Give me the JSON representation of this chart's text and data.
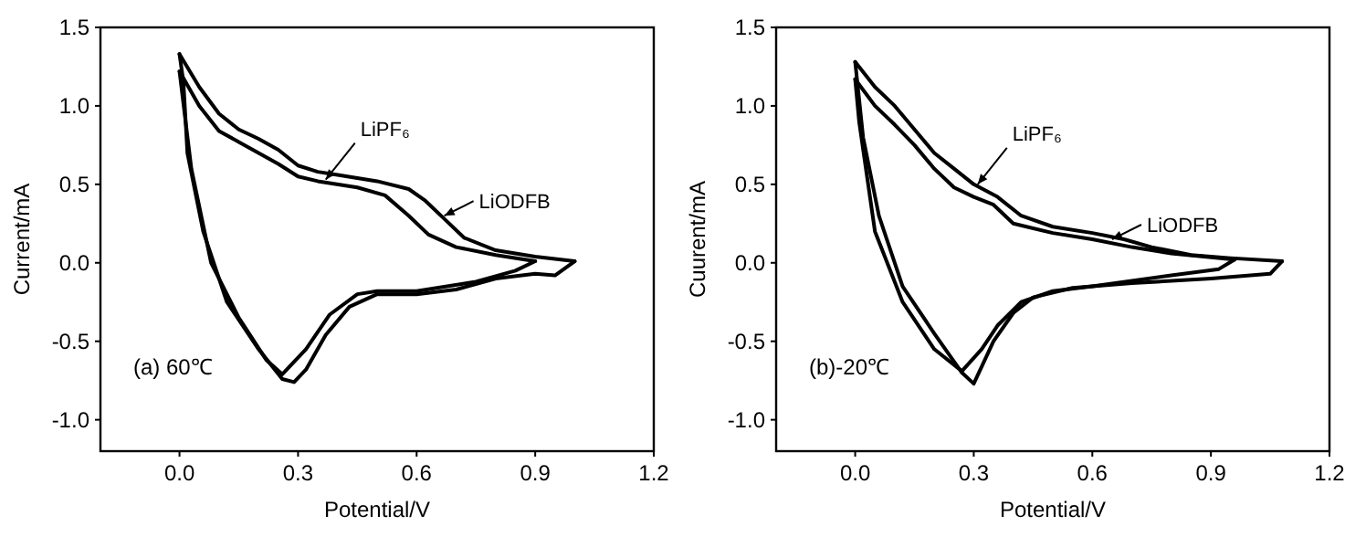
{
  "chart_data": [
    {
      "type": "line",
      "xlabel": "Potential/V",
      "ylabel": "Current/mA",
      "xlim": [
        -0.2,
        1.2
      ],
      "ylim": [
        -1.2,
        1.5
      ],
      "xticks": [
        {
          "value": 0,
          "label": "0.0"
        },
        0.3,
        0.6,
        0.9,
        1.2
      ],
      "yticks": [
        {
          "value": -1,
          "label": "-1.0"
        },
        -0.5,
        {
          "value": 0,
          "label": "0.0"
        },
        0.5,
        {
          "value": 1,
          "label": "1.0"
        },
        1.5
      ],
      "marker": "none",
      "line_style": "solid",
      "annotations": [
        "(a) 60℃",
        {
          "text": "LiPF₆",
          "x": 0.37,
          "y": 0.53
        },
        {
          "text": "LiODFB",
          "x": 0.67,
          "y": 0.3
        }
      ],
      "series": [
        {
          "color": "#000000",
          "x": [
            0.0,
            0.05,
            0.1,
            0.15,
            0.2,
            0.25,
            0.3,
            0.35,
            0.45,
            0.52,
            0.58,
            0.63,
            0.7,
            0.8,
            0.9
          ],
          "values": [
            1.22,
            1.0,
            0.84,
            0.77,
            0.7,
            0.63,
            0.55,
            0.52,
            0.48,
            0.43,
            0.3,
            0.18,
            0.1,
            0.05,
            0.01
          ]
        },
        {
          "color": "#000000",
          "x": [
            0.9,
            0.85,
            0.75,
            0.6,
            0.5,
            0.45,
            0.38,
            0.32,
            0.26,
            0.22,
            0.15,
            0.08,
            0.03,
            0.0
          ],
          "values": [
            0.01,
            -0.05,
            -0.12,
            -0.18,
            -0.18,
            -0.2,
            -0.33,
            -0.55,
            -0.71,
            -0.62,
            -0.35,
            0.0,
            0.6,
            1.22
          ]
        },
        {
          "color": "#000000",
          "x": [
            0.0,
            0.05,
            0.1,
            0.15,
            0.2,
            0.25,
            0.3,
            0.35,
            0.4,
            0.5,
            0.58,
            0.62,
            0.67,
            0.72,
            0.8,
            0.9,
            1.0
          ],
          "values": [
            1.33,
            1.12,
            0.95,
            0.85,
            0.79,
            0.72,
            0.62,
            0.58,
            0.56,
            0.52,
            0.47,
            0.4,
            0.28,
            0.16,
            0.08,
            0.04,
            0.01
          ]
        },
        {
          "color": "#000000",
          "x": [
            1.0,
            0.95,
            0.9,
            0.8,
            0.7,
            0.6,
            0.5,
            0.43,
            0.37,
            0.32,
            0.29,
            0.26,
            0.2,
            0.12,
            0.06,
            0.02,
            0.01,
            0.0
          ],
          "values": [
            0.01,
            -0.08,
            -0.07,
            -0.1,
            -0.17,
            -0.2,
            -0.2,
            -0.28,
            -0.46,
            -0.68,
            -0.76,
            -0.74,
            -0.55,
            -0.25,
            0.2,
            0.7,
            1.15,
            1.33
          ]
        }
      ]
    },
    {
      "type": "line",
      "xlabel": "Potential/V",
      "ylabel": "Cuurent/mA",
      "xlim": [
        -0.2,
        1.2
      ],
      "ylim": [
        -1.2,
        1.5
      ],
      "xticks": [
        {
          "value": 0,
          "label": "0.0"
        },
        0.3,
        0.6,
        0.9,
        1.2
      ],
      "yticks": [
        {
          "value": -1,
          "label": "-1.0"
        },
        -0.5,
        {
          "value": 0,
          "label": "0.0"
        },
        0.5,
        {
          "value": 1,
          "label": "1.0"
        },
        1.5
      ],
      "marker": "none",
      "line_style": "solid",
      "annotations": [
        "(b)-20℃",
        {
          "text": "LiPF₆",
          "x": 0.31,
          "y": 0.5
        },
        {
          "text": "LiODFB",
          "x": 0.65,
          "y": 0.15
        }
      ],
      "series": [
        {
          "color": "#000000",
          "x": [
            0.0,
            0.05,
            0.1,
            0.15,
            0.2,
            0.25,
            0.3,
            0.36,
            0.42,
            0.5,
            0.6,
            0.68,
            0.75,
            0.85,
            0.95,
            1.08
          ],
          "values": [
            1.28,
            1.12,
            1.0,
            0.85,
            0.7,
            0.6,
            0.5,
            0.42,
            0.3,
            0.23,
            0.19,
            0.15,
            0.1,
            0.05,
            0.03,
            0.01
          ]
        },
        {
          "color": "#000000",
          "x": [
            1.08,
            1.05,
            0.9,
            0.7,
            0.55,
            0.45,
            0.4,
            0.35,
            0.3,
            0.27,
            0.2,
            0.12,
            0.06,
            0.02,
            0.0
          ],
          "values": [
            0.01,
            -0.07,
            -0.1,
            -0.13,
            -0.16,
            -0.22,
            -0.32,
            -0.5,
            -0.77,
            -0.7,
            -0.45,
            -0.15,
            0.3,
            0.8,
            1.28
          ]
        },
        {
          "color": "#000000",
          "x": [
            0.0,
            0.05,
            0.1,
            0.15,
            0.2,
            0.25,
            0.3,
            0.35,
            0.4,
            0.5,
            0.6,
            0.7,
            0.8,
            0.96
          ],
          "values": [
            1.17,
            1.0,
            0.88,
            0.75,
            0.6,
            0.48,
            0.42,
            0.37,
            0.25,
            0.19,
            0.15,
            0.1,
            0.06,
            0.02
          ]
        },
        {
          "color": "#000000",
          "x": [
            0.96,
            0.92,
            0.8,
            0.6,
            0.5,
            0.42,
            0.36,
            0.32,
            0.27,
            0.2,
            0.12,
            0.05,
            0.01,
            0.0
          ],
          "values": [
            0.02,
            -0.04,
            -0.08,
            -0.15,
            -0.18,
            -0.25,
            -0.4,
            -0.55,
            -0.69,
            -0.55,
            -0.25,
            0.2,
            0.9,
            1.17
          ]
        }
      ]
    }
  ]
}
